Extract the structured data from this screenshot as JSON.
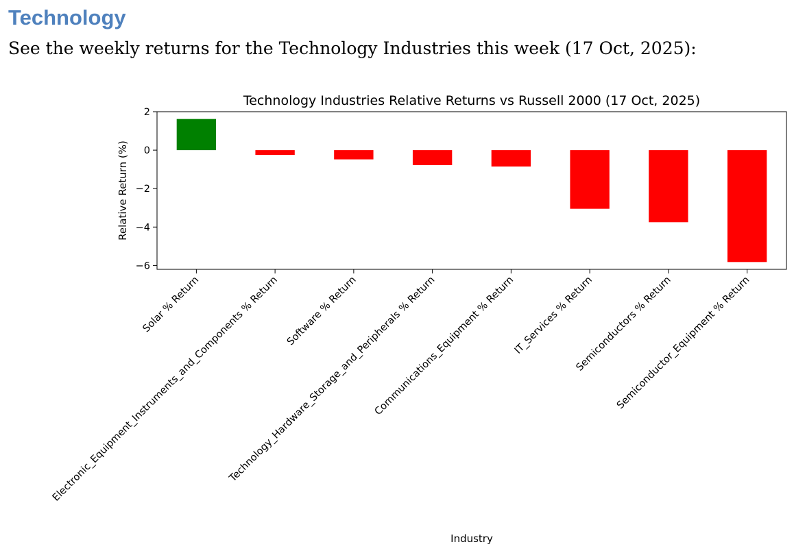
{
  "document": {
    "heading": "Technology",
    "intro": "See the weekly returns for the Technology Industries this week (17 Oct, 2025):"
  },
  "chart_data": {
    "type": "bar",
    "title": "Technology Industries Relative Returns vs Russell 2000 (17 Oct, 2025)",
    "xlabel": "Industry",
    "ylabel": "Relative Return (%)",
    "categories": [
      "Solar % Return",
      "Electronic_Equipment_Instruments_and_Components % Return",
      "Software % Return",
      "Technology_Hardware_Storage_and_Peripherals % Return",
      "Communications_Equipment % Return",
      "IT_Services % Return",
      "Semiconductors % Return",
      "Semiconductor_Equipment % Return"
    ],
    "values": [
      1.62,
      -0.25,
      -0.48,
      -0.78,
      -0.85,
      -3.05,
      -3.75,
      -5.82
    ],
    "ylim": [
      -6.2,
      2.0
    ],
    "yticks": [
      2,
      0,
      -2,
      -4,
      -6
    ],
    "grid": false,
    "legend": "none",
    "colors": {
      "positive": "#008000",
      "negative": "#ff0000"
    }
  }
}
